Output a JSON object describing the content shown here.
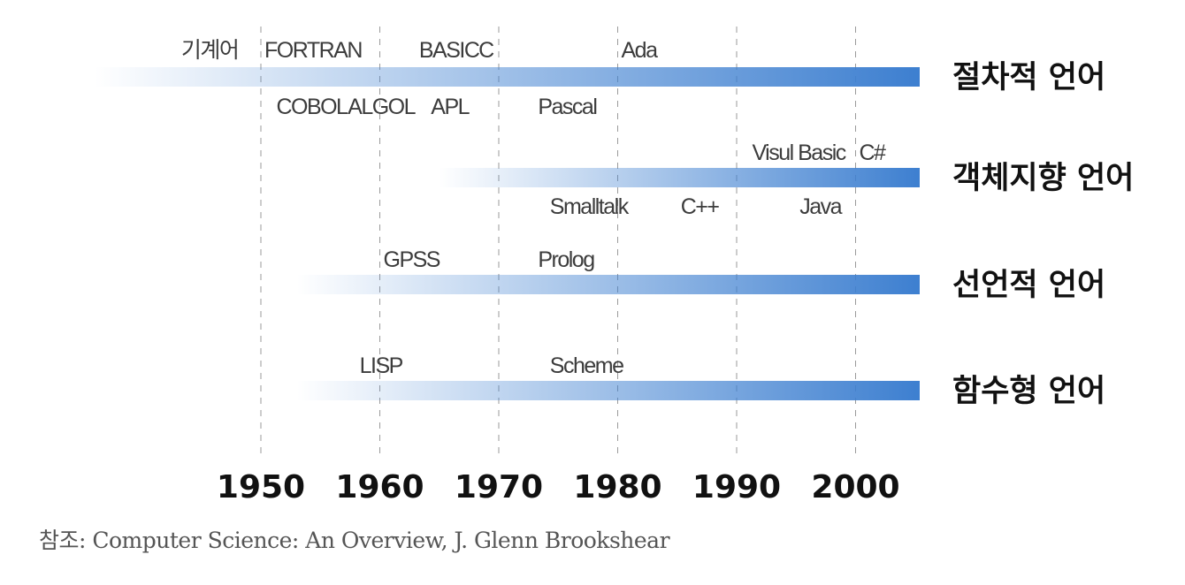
{
  "timeline": {
    "decades": [
      {
        "year": 1950,
        "label": "1950"
      },
      {
        "year": 1960,
        "label": "1960"
      },
      {
        "year": 1970,
        "label": "1970"
      },
      {
        "year": 1980,
        "label": "1980"
      },
      {
        "year": 1990,
        "label": "1990"
      },
      {
        "year": 2000,
        "label": "2000"
      }
    ],
    "bar_color": "#3d7fd0",
    "categories": [
      {
        "label": "절차적 언어",
        "start_year": 1936,
        "languages_above": [
          {
            "name": "기계어",
            "year": 1943
          },
          {
            "name": "FORTRAN",
            "year": 1950
          },
          {
            "name": "BASIC",
            "year": 1963
          },
          {
            "name": "C",
            "year": 1968
          },
          {
            "name": "Ada",
            "year": 1980
          }
        ],
        "languages_below": [
          {
            "name": "COBOL",
            "year": 1951
          },
          {
            "name": "ALGOL",
            "year": 1957
          },
          {
            "name": "APL",
            "year": 1964
          },
          {
            "name": "Pascal",
            "year": 1973
          }
        ]
      },
      {
        "label": "객체지향 언어",
        "start_year": 1965,
        "languages_above": [
          {
            "name": "Visul Basic",
            "year": 1991
          },
          {
            "name": "C#",
            "year": 2000
          }
        ],
        "languages_below": [
          {
            "name": "Smalltalk",
            "year": 1974
          },
          {
            "name": "C++",
            "year": 1985
          },
          {
            "name": "Java",
            "year": 1995
          }
        ]
      },
      {
        "label": "선언적 언어",
        "start_year": 1953,
        "languages_above": [
          {
            "name": "GPSS",
            "year": 1960
          },
          {
            "name": "Prolog",
            "year": 1973
          }
        ],
        "languages_below": []
      },
      {
        "label": "함수형 언어",
        "start_year": 1953,
        "languages_above": [
          {
            "name": "LISP",
            "year": 1958
          },
          {
            "name": "Scheme",
            "year": 1974
          }
        ],
        "languages_below": []
      }
    ]
  },
  "caption": "참조: Computer Science: An Overview, J. Glenn Brookshear"
}
